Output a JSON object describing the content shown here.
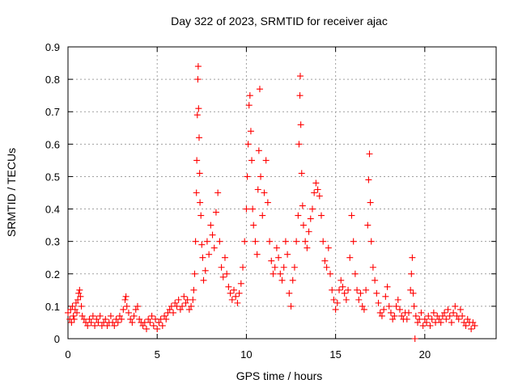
{
  "chart_data": {
    "type": "scatter",
    "title": "Day 322 of 2023, SRMTID for receiver ajac",
    "xlabel": "GPS time / hours",
    "ylabel": "SRMTID / TECUs",
    "xlim": [
      0,
      24
    ],
    "ylim": [
      0,
      0.9
    ],
    "xticks": [
      0,
      5,
      10,
      15,
      20
    ],
    "yticks": [
      0,
      0.1,
      0.2,
      0.3,
      0.4,
      0.5,
      0.6,
      0.7,
      0.8,
      0.9
    ],
    "grid": true,
    "marker": "plus",
    "color": "#ff0000",
    "series": [
      {
        "name": "SRMTID",
        "points": [
          [
            0.0,
            0.08
          ],
          [
            0.1,
            0.06
          ],
          [
            0.15,
            0.09
          ],
          [
            0.2,
            0.05
          ],
          [
            0.25,
            0.1
          ],
          [
            0.3,
            0.07
          ],
          [
            0.35,
            0.06
          ],
          [
            0.4,
            0.09
          ],
          [
            0.45,
            0.11
          ],
          [
            0.5,
            0.08
          ],
          [
            0.55,
            0.12
          ],
          [
            0.6,
            0.14
          ],
          [
            0.65,
            0.15
          ],
          [
            0.7,
            0.13
          ],
          [
            0.75,
            0.1
          ],
          [
            0.8,
            0.07
          ],
          [
            0.9,
            0.06
          ],
          [
            1.0,
            0.05
          ],
          [
            1.1,
            0.04
          ],
          [
            1.2,
            0.06
          ],
          [
            1.3,
            0.05
          ],
          [
            1.4,
            0.07
          ],
          [
            1.5,
            0.04
          ],
          [
            1.6,
            0.06
          ],
          [
            1.7,
            0.05
          ],
          [
            1.8,
            0.07
          ],
          [
            1.9,
            0.04
          ],
          [
            2.0,
            0.05
          ],
          [
            2.1,
            0.06
          ],
          [
            2.2,
            0.04
          ],
          [
            2.3,
            0.05
          ],
          [
            2.4,
            0.07
          ],
          [
            2.5,
            0.05
          ],
          [
            2.6,
            0.04
          ],
          [
            2.7,
            0.06
          ],
          [
            2.8,
            0.05
          ],
          [
            2.9,
            0.07
          ],
          [
            3.0,
            0.06
          ],
          [
            3.1,
            0.09
          ],
          [
            3.2,
            0.12
          ],
          [
            3.25,
            0.13
          ],
          [
            3.3,
            0.1
          ],
          [
            3.4,
            0.08
          ],
          [
            3.5,
            0.06
          ],
          [
            3.6,
            0.05
          ],
          [
            3.7,
            0.07
          ],
          [
            3.8,
            0.09
          ],
          [
            3.9,
            0.1
          ],
          [
            4.0,
            0.06
          ],
          [
            4.1,
            0.05
          ],
          [
            4.2,
            0.04
          ],
          [
            4.3,
            0.05
          ],
          [
            4.4,
            0.03
          ],
          [
            4.5,
            0.06
          ],
          [
            4.6,
            0.05
          ],
          [
            4.7,
            0.07
          ],
          [
            4.8,
            0.04
          ],
          [
            4.9,
            0.06
          ],
          [
            5.0,
            0.03
          ],
          [
            5.1,
            0.05
          ],
          [
            5.2,
            0.06
          ],
          [
            5.3,
            0.04
          ],
          [
            5.4,
            0.07
          ],
          [
            5.5,
            0.06
          ],
          [
            5.6,
            0.08
          ],
          [
            5.7,
            0.09
          ],
          [
            5.8,
            0.1
          ],
          [
            5.9,
            0.08
          ],
          [
            6.0,
            0.11
          ],
          [
            6.1,
            0.1
          ],
          [
            6.2,
            0.12
          ],
          [
            6.3,
            0.09
          ],
          [
            6.4,
            0.1
          ],
          [
            6.5,
            0.13
          ],
          [
            6.6,
            0.11
          ],
          [
            6.7,
            0.12
          ],
          [
            6.8,
            0.09
          ],
          [
            6.9,
            0.1
          ],
          [
            7.0,
            0.12
          ],
          [
            7.05,
            0.15
          ],
          [
            7.1,
            0.2
          ],
          [
            7.15,
            0.3
          ],
          [
            7.2,
            0.45
          ],
          [
            7.22,
            0.55
          ],
          [
            7.25,
            0.69
          ],
          [
            7.28,
            0.8
          ],
          [
            7.3,
            0.84
          ],
          [
            7.32,
            0.71
          ],
          [
            7.35,
            0.62
          ],
          [
            7.38,
            0.51
          ],
          [
            7.4,
            0.42
          ],
          [
            7.45,
            0.38
          ],
          [
            7.5,
            0.29
          ],
          [
            7.55,
            0.25
          ],
          [
            7.6,
            0.18
          ],
          [
            7.7,
            0.21
          ],
          [
            7.8,
            0.3
          ],
          [
            7.9,
            0.26
          ],
          [
            8.0,
            0.35
          ],
          [
            8.1,
            0.32
          ],
          [
            8.2,
            0.28
          ],
          [
            8.3,
            0.39
          ],
          [
            8.4,
            0.45
          ],
          [
            8.5,
            0.3
          ],
          [
            8.6,
            0.22
          ],
          [
            8.7,
            0.19
          ],
          [
            8.8,
            0.25
          ],
          [
            8.9,
            0.2
          ],
          [
            9.0,
            0.16
          ],
          [
            9.1,
            0.14
          ],
          [
            9.2,
            0.12
          ],
          [
            9.3,
            0.15
          ],
          [
            9.4,
            0.13
          ],
          [
            9.5,
            0.11
          ],
          [
            9.6,
            0.14
          ],
          [
            9.7,
            0.17
          ],
          [
            9.8,
            0.22
          ],
          [
            9.9,
            0.3
          ],
          [
            10.0,
            0.4
          ],
          [
            10.05,
            0.5
          ],
          [
            10.1,
            0.6
          ],
          [
            10.15,
            0.72
          ],
          [
            10.2,
            0.75
          ],
          [
            10.25,
            0.64
          ],
          [
            10.3,
            0.55
          ],
          [
            10.35,
            0.4
          ],
          [
            10.4,
            0.35
          ],
          [
            10.5,
            0.3
          ],
          [
            10.6,
            0.26
          ],
          [
            10.65,
            0.46
          ],
          [
            10.7,
            0.58
          ],
          [
            10.75,
            0.77
          ],
          [
            10.8,
            0.5
          ],
          [
            10.9,
            0.38
          ],
          [
            11.0,
            0.45
          ],
          [
            11.1,
            0.55
          ],
          [
            11.2,
            0.42
          ],
          [
            11.3,
            0.3
          ],
          [
            11.4,
            0.24
          ],
          [
            11.5,
            0.2
          ],
          [
            11.6,
            0.22
          ],
          [
            11.7,
            0.28
          ],
          [
            11.8,
            0.25
          ],
          [
            11.9,
            0.2
          ],
          [
            12.0,
            0.18
          ],
          [
            12.1,
            0.22
          ],
          [
            12.2,
            0.3
          ],
          [
            12.3,
            0.26
          ],
          [
            12.4,
            0.14
          ],
          [
            12.5,
            0.1
          ],
          [
            12.6,
            0.18
          ],
          [
            12.7,
            0.22
          ],
          [
            12.8,
            0.3
          ],
          [
            12.9,
            0.38
          ],
          [
            12.95,
            0.6
          ],
          [
            13.0,
            0.75
          ],
          [
            13.02,
            0.81
          ],
          [
            13.05,
            0.66
          ],
          [
            13.1,
            0.51
          ],
          [
            13.15,
            0.41
          ],
          [
            13.2,
            0.35
          ],
          [
            13.3,
            0.3
          ],
          [
            13.4,
            0.28
          ],
          [
            13.5,
            0.33
          ],
          [
            13.6,
            0.37
          ],
          [
            13.7,
            0.4
          ],
          [
            13.8,
            0.45
          ],
          [
            13.9,
            0.48
          ],
          [
            14.0,
            0.46
          ],
          [
            14.1,
            0.44
          ],
          [
            14.2,
            0.38
          ],
          [
            14.3,
            0.3
          ],
          [
            14.4,
            0.24
          ],
          [
            14.5,
            0.22
          ],
          [
            14.6,
            0.28
          ],
          [
            14.7,
            0.2
          ],
          [
            14.8,
            0.15
          ],
          [
            14.9,
            0.12
          ],
          [
            15.0,
            0.09
          ],
          [
            15.1,
            0.11
          ],
          [
            15.2,
            0.15
          ],
          [
            15.3,
            0.18
          ],
          [
            15.4,
            0.16
          ],
          [
            15.5,
            0.14
          ],
          [
            15.6,
            0.12
          ],
          [
            15.7,
            0.15
          ],
          [
            15.8,
            0.25
          ],
          [
            15.9,
            0.38
          ],
          [
            16.0,
            0.3
          ],
          [
            16.1,
            0.2
          ],
          [
            16.2,
            0.15
          ],
          [
            16.3,
            0.12
          ],
          [
            16.4,
            0.14
          ],
          [
            16.5,
            0.1
          ],
          [
            16.6,
            0.09
          ],
          [
            16.7,
            0.15
          ],
          [
            16.8,
            0.35
          ],
          [
            16.85,
            0.49
          ],
          [
            16.9,
            0.57
          ],
          [
            16.95,
            0.42
          ],
          [
            17.0,
            0.3
          ],
          [
            17.1,
            0.22
          ],
          [
            17.2,
            0.18
          ],
          [
            17.3,
            0.14
          ],
          [
            17.4,
            0.11
          ],
          [
            17.5,
            0.08
          ],
          [
            17.6,
            0.07
          ],
          [
            17.7,
            0.09
          ],
          [
            17.8,
            0.13
          ],
          [
            17.9,
            0.16
          ],
          [
            18.0,
            0.1
          ],
          [
            18.1,
            0.08
          ],
          [
            18.2,
            0.06
          ],
          [
            18.3,
            0.07
          ],
          [
            18.4,
            0.1
          ],
          [
            18.5,
            0.12
          ],
          [
            18.6,
            0.09
          ],
          [
            18.7,
            0.07
          ],
          [
            18.8,
            0.06
          ],
          [
            18.9,
            0.08
          ],
          [
            19.0,
            0.06
          ],
          [
            19.1,
            0.08
          ],
          [
            19.2,
            0.15
          ],
          [
            19.25,
            0.2
          ],
          [
            19.3,
            0.25
          ],
          [
            19.35,
            0.14
          ],
          [
            19.4,
            0.1
          ],
          [
            19.45,
            0.0
          ],
          [
            19.5,
            0.07
          ],
          [
            19.6,
            0.05
          ],
          [
            19.7,
            0.06
          ],
          [
            19.8,
            0.08
          ],
          [
            19.9,
            0.04
          ],
          [
            20.0,
            0.06
          ],
          [
            20.1,
            0.05
          ],
          [
            20.2,
            0.07
          ],
          [
            20.3,
            0.04
          ],
          [
            20.4,
            0.06
          ],
          [
            20.5,
            0.08
          ],
          [
            20.6,
            0.05
          ],
          [
            20.7,
            0.07
          ],
          [
            20.8,
            0.06
          ],
          [
            20.9,
            0.05
          ],
          [
            21.0,
            0.07
          ],
          [
            21.1,
            0.08
          ],
          [
            21.2,
            0.06
          ],
          [
            21.3,
            0.09
          ],
          [
            21.4,
            0.07
          ],
          [
            21.5,
            0.05
          ],
          [
            21.6,
            0.08
          ],
          [
            21.7,
            0.1
          ],
          [
            21.8,
            0.07
          ],
          [
            21.9,
            0.06
          ],
          [
            22.0,
            0.09
          ],
          [
            22.1,
            0.07
          ],
          [
            22.2,
            0.05
          ],
          [
            22.3,
            0.04
          ],
          [
            22.4,
            0.06
          ],
          [
            22.5,
            0.05
          ],
          [
            22.6,
            0.03
          ],
          [
            22.7,
            0.05
          ],
          [
            22.8,
            0.04
          ]
        ]
      }
    ]
  }
}
